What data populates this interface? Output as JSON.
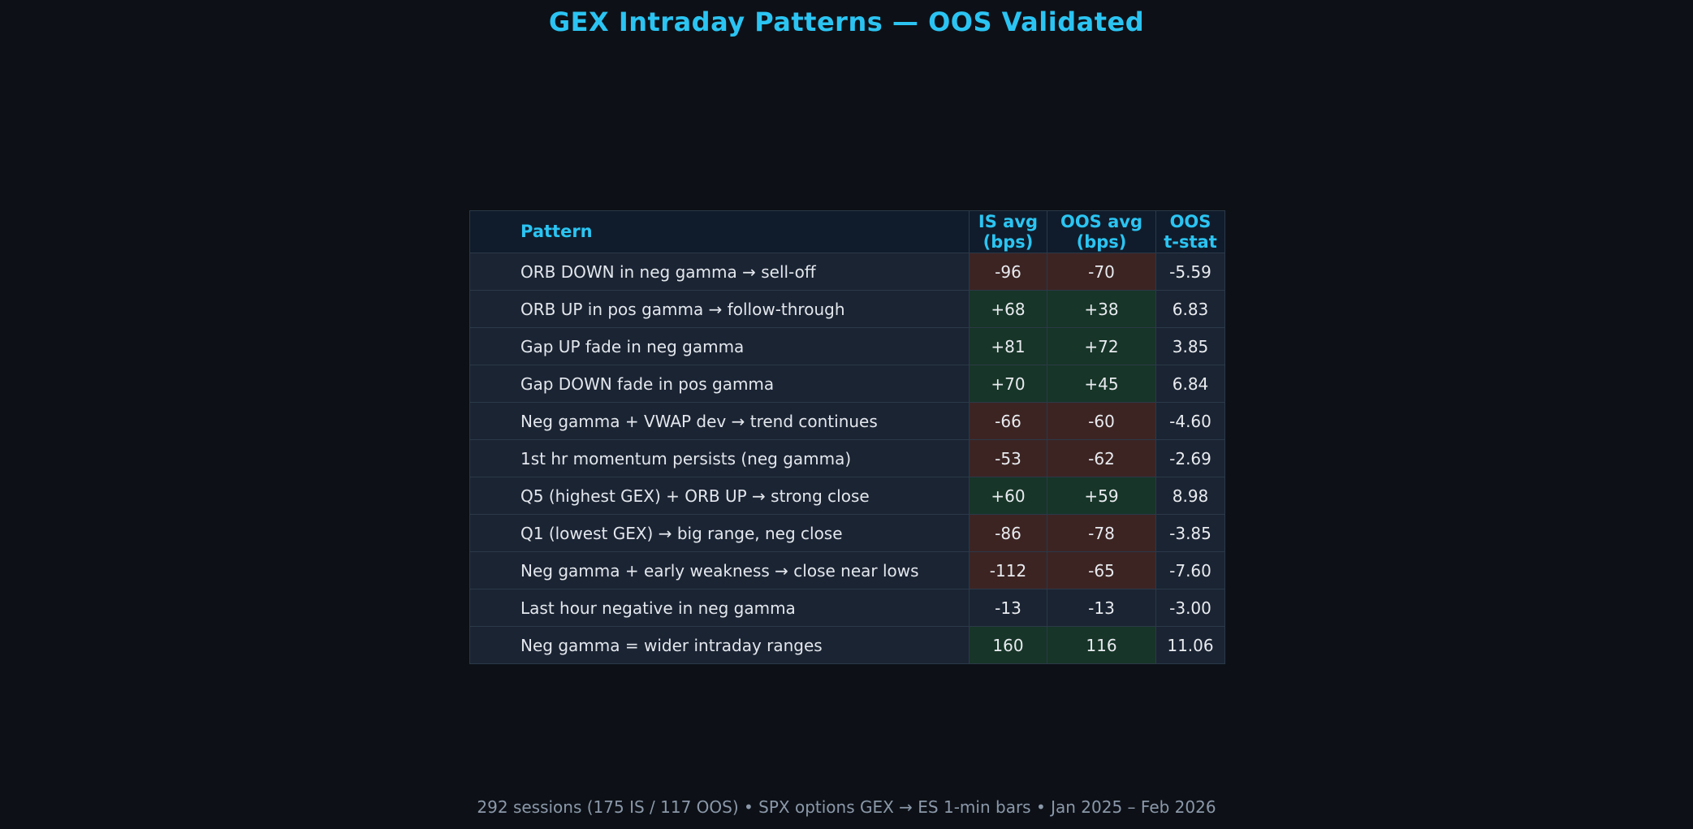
{
  "page": {
    "title": "GEX Intraday Patterns — OOS Validated",
    "footer": "292 sessions (175 IS / 117 OOS) • SPX options GEX → ES 1-min bars • Jan 2025 – Feb 2026"
  },
  "colors": {
    "background": "#0d1117",
    "accent_cyan": "#2bc4f2",
    "row_bg": "#1b2433",
    "header_bg": "#101c2b",
    "negative_cell": "#3c2423",
    "positive_cell": "#173528",
    "body_text": "#e3e7ed",
    "footer_text": "#8b98a9",
    "border_inner": "#2b3948",
    "border_outer": "#3e4d60"
  },
  "table": {
    "headers": {
      "pattern": "Pattern",
      "is_avg": [
        "IS avg",
        "(bps)"
      ],
      "oos_avg": [
        "OOS avg",
        "(bps)"
      ],
      "t_stat": [
        "OOS",
        "t-stat"
      ]
    },
    "rows": [
      {
        "pattern": "ORB DOWN in neg gamma → sell-off",
        "is_avg": "-96",
        "oos_avg": "-70",
        "t_stat": "-5.59",
        "tone": "negative"
      },
      {
        "pattern": "ORB UP in pos gamma → follow-through",
        "is_avg": "+68",
        "oos_avg": "+38",
        "t_stat": "6.83",
        "tone": "positive"
      },
      {
        "pattern": "Gap UP fade in neg gamma",
        "is_avg": "+81",
        "oos_avg": "+72",
        "t_stat": "3.85",
        "tone": "positive"
      },
      {
        "pattern": "Gap DOWN fade in pos gamma",
        "is_avg": "+70",
        "oos_avg": "+45",
        "t_stat": "6.84",
        "tone": "positive"
      },
      {
        "pattern": "Neg gamma + VWAP dev → trend continues",
        "is_avg": "-66",
        "oos_avg": "-60",
        "t_stat": "-4.60",
        "tone": "negative"
      },
      {
        "pattern": "1st hr momentum persists (neg gamma)",
        "is_avg": "-53",
        "oos_avg": "-62",
        "t_stat": "-2.69",
        "tone": "negative"
      },
      {
        "pattern": "Q5 (highest GEX) + ORB UP → strong close",
        "is_avg": "+60",
        "oos_avg": "+59",
        "t_stat": "8.98",
        "tone": "positive"
      },
      {
        "pattern": "Q1 (lowest GEX) → big range, neg close",
        "is_avg": "-86",
        "oos_avg": "-78",
        "t_stat": "-3.85",
        "tone": "negative"
      },
      {
        "pattern": "Neg gamma + early weakness → close near lows",
        "is_avg": "-112",
        "oos_avg": "-65",
        "t_stat": "-7.60",
        "tone": "negative"
      },
      {
        "pattern": "Last hour negative in neg gamma",
        "is_avg": "-13",
        "oos_avg": "-13",
        "t_stat": "-3.00",
        "tone": "neutral"
      },
      {
        "pattern": "Neg gamma = wider intraday ranges",
        "is_avg": "160",
        "oos_avg": "116",
        "t_stat": "11.06",
        "tone": "positive"
      }
    ]
  },
  "chart_data": {
    "type": "table",
    "title": "GEX Intraday Patterns — OOS Validated",
    "caption": "292 sessions (175 IS / 117 OOS) • SPX options GEX → ES 1-min bars • Jan 2025 – Feb 2026",
    "columns": [
      "Pattern",
      "IS avg (bps)",
      "OOS avg (bps)",
      "OOS t-stat"
    ],
    "rows": [
      [
        "ORB DOWN in neg gamma → sell-off",
        -96,
        -70,
        -5.59
      ],
      [
        "ORB UP in pos gamma → follow-through",
        68,
        38,
        6.83
      ],
      [
        "Gap UP fade in neg gamma",
        81,
        72,
        3.85
      ],
      [
        "Gap DOWN fade in pos gamma",
        70,
        45,
        6.84
      ],
      [
        "Neg gamma + VWAP dev → trend continues",
        -66,
        -60,
        -4.6
      ],
      [
        "1st hr momentum persists (neg gamma)",
        -53,
        -62,
        -2.69
      ],
      [
        "Q5 (highest GEX) + ORB UP → strong close",
        60,
        59,
        8.98
      ],
      [
        "Q1 (lowest GEX) → big range, neg close",
        -86,
        -78,
        -3.85
      ],
      [
        "Neg gamma + early weakness → close near lows",
        -112,
        -65,
        -7.6
      ],
      [
        "Last hour negative in neg gamma",
        -13,
        -13,
        -3.0
      ],
      [
        "Neg gamma = wider intraday ranges",
        160,
        116,
        11.06
      ]
    ],
    "cell_tones": [
      "negative",
      "positive",
      "positive",
      "positive",
      "negative",
      "negative",
      "positive",
      "negative",
      "negative",
      "neutral",
      "positive"
    ],
    "legend_position": "none",
    "grid": true
  }
}
